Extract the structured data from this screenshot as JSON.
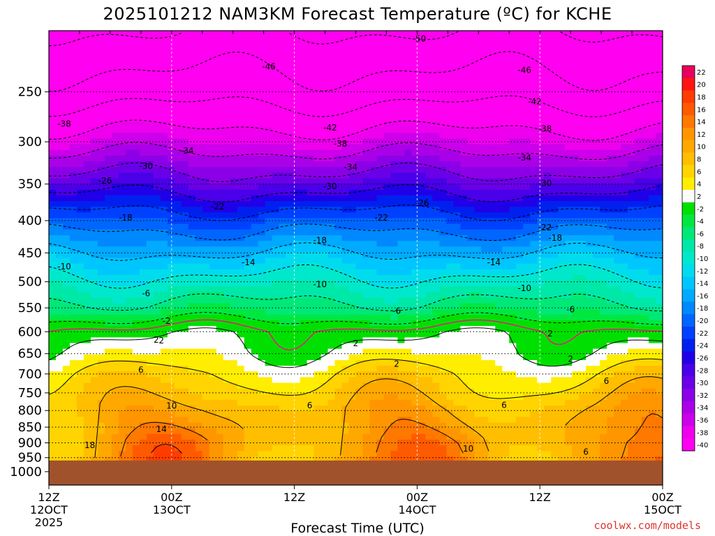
{
  "chart_data": {
    "type": "heatmap",
    "title": "2025101212 NAM3KM Forecast Temperature (ºC) for KCHE",
    "xlabel": "Forecast Time (UTC)",
    "ylabel": "",
    "y_scale": "log-pressure",
    "y_unit": "hPa",
    "ylim": [
      1050,
      200
    ],
    "y_ticks": [
      250,
      300,
      350,
      400,
      450,
      500,
      550,
      600,
      650,
      700,
      750,
      800,
      850,
      900,
      950,
      1000
    ],
    "x_range_hours": [
      0,
      60
    ],
    "x_ticks": [
      {
        "hour": 0,
        "line1": "12Z",
        "line2": "12OCT",
        "line3": "2025"
      },
      {
        "hour": 12,
        "line1": "00Z",
        "line2": "13OCT",
        "line3": ""
      },
      {
        "hour": 24,
        "line1": "12Z",
        "line2": "",
        "line3": ""
      },
      {
        "hour": 36,
        "line1": "00Z",
        "line2": "14OCT",
        "line3": ""
      },
      {
        "hour": 48,
        "line1": "12Z",
        "line2": "",
        "line3": ""
      },
      {
        "hour": 60,
        "line1": "00Z",
        "line2": "15OCT",
        "line3": ""
      }
    ],
    "grid": true,
    "temperature_profile_c": {
      "pressure_hpa": [
        200,
        250,
        300,
        350,
        400,
        450,
        500,
        550,
        600,
        650,
        700,
        750,
        800,
        850,
        900,
        950
      ],
      "temp_c": [
        -50,
        -44,
        -36,
        -28,
        -20,
        -14,
        -9,
        -5,
        1,
        3,
        6,
        8,
        10,
        11,
        12,
        12
      ]
    },
    "contour_levels": [
      -50,
      -46,
      -42,
      -38,
      -34,
      -30,
      -26,
      -22,
      -18,
      -14,
      -10,
      -6,
      -2,
      2,
      6,
      10,
      14,
      18
    ],
    "contour_labels": [
      {
        "text": "-50",
        "hour": 36.2,
        "p": 206
      },
      {
        "text": "-46",
        "hour": 21.5,
        "p": 228
      },
      {
        "text": "-46",
        "hour": 46.5,
        "p": 231
      },
      {
        "text": "-42",
        "hour": 47.5,
        "p": 259
      },
      {
        "text": "-42",
        "hour": 27.5,
        "p": 285
      },
      {
        "text": "-38",
        "hour": 1.5,
        "p": 281
      },
      {
        "text": "-38",
        "hour": 48.5,
        "p": 286
      },
      {
        "text": "-38",
        "hour": 28.5,
        "p": 302
      },
      {
        "text": "-34",
        "hour": 13.5,
        "p": 310
      },
      {
        "text": "-34",
        "hour": 29.5,
        "p": 329
      },
      {
        "text": "-34",
        "hour": 46.5,
        "p": 318
      },
      {
        "text": "-30",
        "hour": 9.5,
        "p": 328
      },
      {
        "text": "-30",
        "hour": 27.5,
        "p": 353
      },
      {
        "text": "-30",
        "hour": 48.5,
        "p": 349
      },
      {
        "text": "-26",
        "hour": 5.5,
        "p": 346
      },
      {
        "text": "-26",
        "hour": 36.5,
        "p": 375
      },
      {
        "text": "-22",
        "hour": 16.5,
        "p": 380
      },
      {
        "text": "-22",
        "hour": 32.5,
        "p": 396
      },
      {
        "text": "-22",
        "hour": 48.5,
        "p": 410
      },
      {
        "text": "-18",
        "hour": 7.5,
        "p": 396
      },
      {
        "text": "-18",
        "hour": 26.5,
        "p": 430
      },
      {
        "text": "-18",
        "hour": 49.5,
        "p": 426
      },
      {
        "text": "-14",
        "hour": 19.5,
        "p": 466
      },
      {
        "text": "-14",
        "hour": 43.5,
        "p": 466
      },
      {
        "text": "-10",
        "hour": 1.5,
        "p": 473
      },
      {
        "text": "-10",
        "hour": 26.5,
        "p": 505
      },
      {
        "text": "-10",
        "hour": 46.5,
        "p": 512
      },
      {
        "text": "-6",
        "hour": 9.5,
        "p": 522
      },
      {
        "text": "-6",
        "hour": 34.0,
        "p": 556
      },
      {
        "text": "-6",
        "hour": 51.0,
        "p": 553
      },
      {
        "text": "-2",
        "hour": 11.5,
        "p": 577
      },
      {
        "text": "2",
        "hour": 11.0,
        "p": 620
      },
      {
        "text": "2",
        "hour": 30.0,
        "p": 626
      },
      {
        "text": "2",
        "hour": 49.0,
        "p": 604
      },
      {
        "text": "2",
        "hour": 10.5,
        "p": 618
      },
      {
        "text": "2",
        "hour": 34.0,
        "p": 675
      },
      {
        "text": "2",
        "hour": 51.0,
        "p": 663
      },
      {
        "text": "6",
        "hour": 9.0,
        "p": 690
      },
      {
        "text": "6",
        "hour": 25.5,
        "p": 785
      },
      {
        "text": "6",
        "hour": 44.5,
        "p": 784
      },
      {
        "text": "6",
        "hour": 54.5,
        "p": 718
      },
      {
        "text": "6",
        "hour": 52.5,
        "p": 930
      },
      {
        "text": "10",
        "hour": 12.0,
        "p": 786
      },
      {
        "text": "10",
        "hour": 41.0,
        "p": 920
      },
      {
        "text": "14",
        "hour": 11.0,
        "p": 856
      },
      {
        "text": "18",
        "hour": 4.0,
        "p": 908
      }
    ],
    "surface_pressure_hpa": 960,
    "legend": {
      "placement": "right",
      "ticks": [
        "22",
        "20",
        "18",
        "16",
        "14",
        "12",
        "10",
        "8",
        "6",
        "4",
        "2",
        "-2",
        "-4",
        "-6",
        "-8",
        "-10",
        "-12",
        "-14",
        "-16",
        "-18",
        "-20",
        "-22",
        "-24",
        "-26",
        "-28",
        "-30",
        "-32",
        "-34",
        "-36",
        "-38",
        "-40"
      ],
      "colors": [
        "#e8005f",
        "#ff1414",
        "#ff3c00",
        "#ff5a00",
        "#ff7800",
        "#ff9600",
        "#ffa800",
        "#ffbe00",
        "#ffd400",
        "#ffee00",
        "#ffffff",
        "#00e000",
        "#00e840",
        "#00e878",
        "#00e8a8",
        "#00e8cc",
        "#00dcee",
        "#00c6ff",
        "#00aaff",
        "#0088ff",
        "#0066ff",
        "#0040ff",
        "#0020f0",
        "#2000e8",
        "#4a00e8",
        "#6a00e8",
        "#8c00e8",
        "#aa00e8",
        "#cc00ea",
        "#ee00ee",
        "#ff00f0"
      ]
    },
    "colors": {
      "freezing_line": "#e0207a",
      "ground": "#a0522d"
    }
  },
  "credit": "coolwx.com/models"
}
